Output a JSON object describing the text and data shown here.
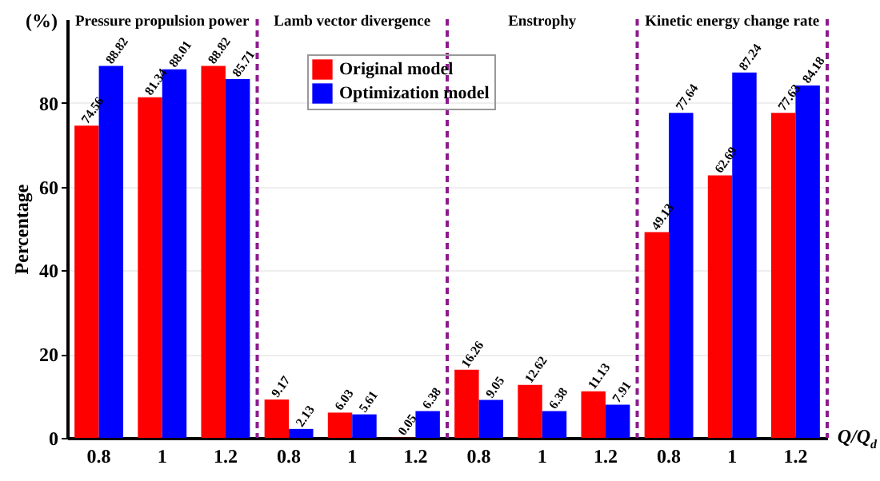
{
  "chart_data": {
    "type": "bar",
    "categories": [
      "0.8",
      "1",
      "1.2",
      "0.8",
      "1",
      "1.2",
      "0.8",
      "1",
      "1.2",
      "0.8",
      "1",
      "1.2"
    ],
    "series": [
      {
        "name": "Original model",
        "color": "#ff0000",
        "values": [
          74.56,
          81.34,
          88.82,
          9.17,
          6.03,
          0.05,
          16.26,
          12.62,
          11.13,
          49.13,
          62.69,
          77.63
        ]
      },
      {
        "name": "Optimization model",
        "color": "#0000ff",
        "values": [
          88.82,
          88.01,
          85.71,
          2.13,
          5.61,
          6.38,
          9.05,
          6.38,
          7.91,
          77.64,
          87.24,
          84.18
        ]
      }
    ],
    "annotations": [
      "(%)",
      "Pressure propulsion power",
      "Lamb vector divergence",
      "Enstrophy",
      "Kinetic energy change rate"
    ],
    "xlabel": "Q/Q$_{d}$",
    "ylabel": "Percentage",
    "ylim": [
      0,
      100
    ],
    "yticks": [
      0,
      20,
      40,
      60,
      80
    ],
    "grid": "y",
    "legend": "top",
    "data_labels": true
  }
}
